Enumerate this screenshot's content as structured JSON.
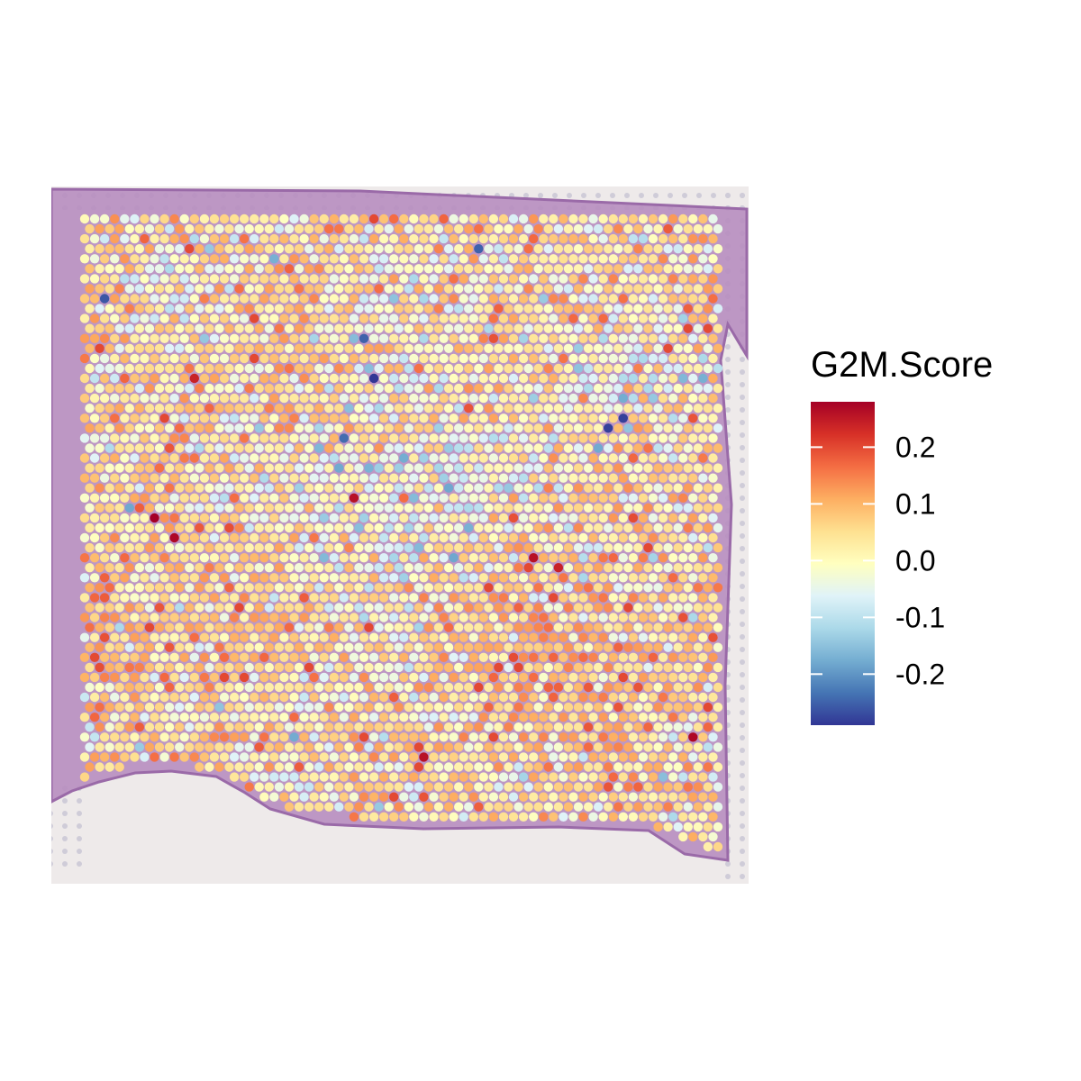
{
  "chart_data": {
    "type": "heatmap",
    "title": "",
    "xlabel": "",
    "ylabel": "",
    "grid": false,
    "legend": {
      "title": "G2M.Score",
      "placement": "right",
      "range": [
        -0.29,
        0.28
      ],
      "ticks": [
        {
          "value": 0.2,
          "label": "0.2"
        },
        {
          "value": 0.1,
          "label": "0.1"
        },
        {
          "value": 0.0,
          "label": "0.0"
        },
        {
          "value": -0.1,
          "label": "-0.1"
        },
        {
          "value": -0.2,
          "label": "-0.2"
        }
      ],
      "colors": [
        "#313695",
        "#4575b4",
        "#74add1",
        "#abd9e9",
        "#e0f3f8",
        "#ffffbf",
        "#fee090",
        "#fdae61",
        "#f46d43",
        "#d73027",
        "#a50026"
      ]
    },
    "grid_dims": {
      "rows": 64,
      "cols": 64
    },
    "spots_description": "Spatial transcriptomics spots colored by G2M cell-cycle score over an H&E tissue image",
    "hot_spots": [
      {
        "row": 30,
        "col": 7,
        "value": 0.28
      },
      {
        "row": 32,
        "col": 9,
        "value": 0.27
      },
      {
        "row": 28,
        "col": 27,
        "value": 0.26
      },
      {
        "row": 54,
        "col": 34,
        "value": 0.26
      },
      {
        "row": 34,
        "col": 45,
        "value": 0.26
      },
      {
        "row": 52,
        "col": 61,
        "value": 0.27
      },
      {
        "row": 16,
        "col": 11,
        "value": 0.24
      },
      {
        "row": 35,
        "col": 47,
        "value": 0.24
      }
    ],
    "cold_spots": [
      {
        "row": 16,
        "col": 29,
        "value": -0.29
      },
      {
        "row": 21,
        "col": 52,
        "value": -0.28
      },
      {
        "row": 20,
        "col": 54,
        "value": -0.28
      },
      {
        "row": 8,
        "col": 2,
        "value": -0.26
      },
      {
        "row": 12,
        "col": 28,
        "value": -0.25
      },
      {
        "row": 22,
        "col": 26,
        "value": -0.24
      },
      {
        "row": 3,
        "col": 39,
        "value": -0.25
      }
    ]
  }
}
